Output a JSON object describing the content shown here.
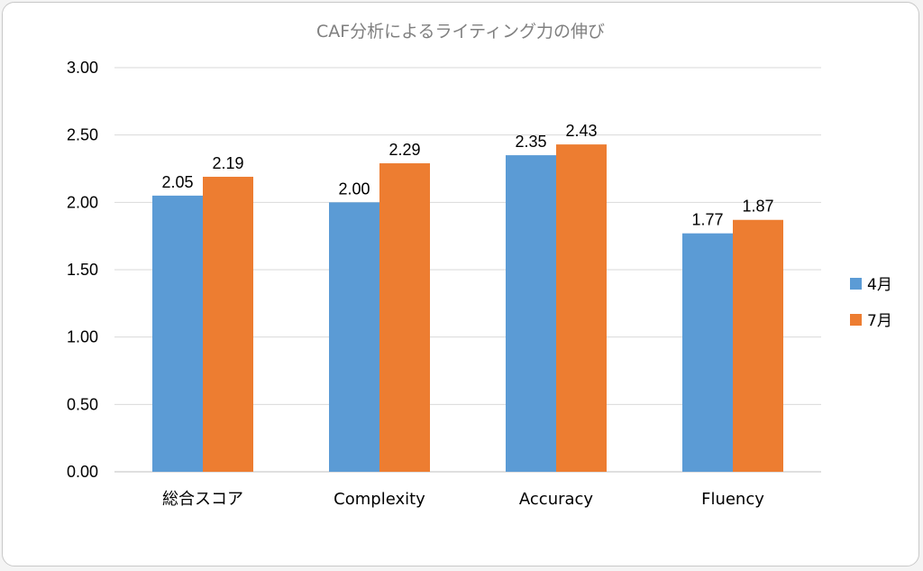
{
  "chart_data": {
    "type": "bar",
    "title": "CAF分析によるライティング力の伸び",
    "categories": [
      "総合スコア",
      "Complexity",
      "Accuracy",
      "Fluency"
    ],
    "series": [
      {
        "name": "4月",
        "color": "#5b9bd5",
        "values": [
          2.05,
          2.0,
          2.35,
          1.77
        ]
      },
      {
        "name": "7月",
        "color": "#ed7d31",
        "values": [
          2.19,
          2.29,
          2.43,
          1.87
        ]
      }
    ],
    "data_labels": [
      [
        "2.05",
        "2.00",
        "2.35",
        "1.77"
      ],
      [
        "2.19",
        "2.29",
        "2.43",
        "1.87"
      ]
    ],
    "ylim": [
      0,
      3.0
    ],
    "yticks": [
      0,
      0.5,
      1.0,
      1.5,
      2.0,
      2.5,
      3.0
    ],
    "ytick_labels": [
      "0.00",
      "0.50",
      "1.00",
      "1.50",
      "2.00",
      "2.50",
      "3.00"
    ],
    "xlabel": "",
    "ylabel": "",
    "grid": true,
    "legend_position": "right"
  }
}
